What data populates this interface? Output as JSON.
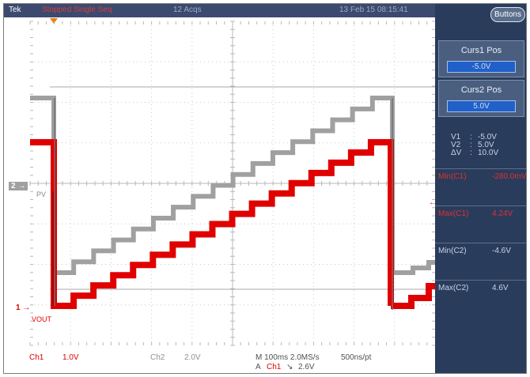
{
  "status_bar": {
    "brand": "Tek",
    "state": "Stopped  Single Seq",
    "acquisitions": "12 Acqs",
    "timestamp": "13 Feb 15 08:15:41"
  },
  "markers": {
    "ch2_ground": "2 →",
    "ch1_ground": "1 →",
    "pv_label": "PV",
    "vout_label": "VOUT"
  },
  "bottom_bar": {
    "ch1_name": "Ch1",
    "ch1_scale": "1.0V",
    "ch2_name": "Ch2",
    "ch2_scale": "2.0V",
    "timebase": "M 100ms 2.0MS/s",
    "sample_interval": "500ns/pt",
    "trigger_prefix": "A",
    "trigger_source": "Ch1",
    "trigger_slope": "↘",
    "trigger_level": "2.6V"
  },
  "side_panel": {
    "buttons_label": "Buttons",
    "cursor1": {
      "title": "Curs1 Pos",
      "value": "-5.0V"
    },
    "cursor2": {
      "title": "Curs2 Pos",
      "value": "5.0V"
    },
    "readouts": [
      {
        "label": "V1",
        "value": "-5.0V"
      },
      {
        "label": "V2",
        "value": "5.0V"
      },
      {
        "label": "ΔV",
        "value": "10.0V"
      }
    ],
    "measurements": [
      {
        "label": "Min(C1)",
        "value": "-280.0mV"
      },
      {
        "label": "Max(C1)",
        "value": "4.24V"
      },
      {
        "label": "Min(C2)",
        "value": "-4.6V"
      },
      {
        "label": "Max(C2)",
        "value": "4.6V"
      }
    ]
  },
  "colors": {
    "ch1": "#e00000",
    "ch2": "#a0a0a0",
    "cursor": "#a8a8a8",
    "panel": "#2a3c5c"
  }
}
